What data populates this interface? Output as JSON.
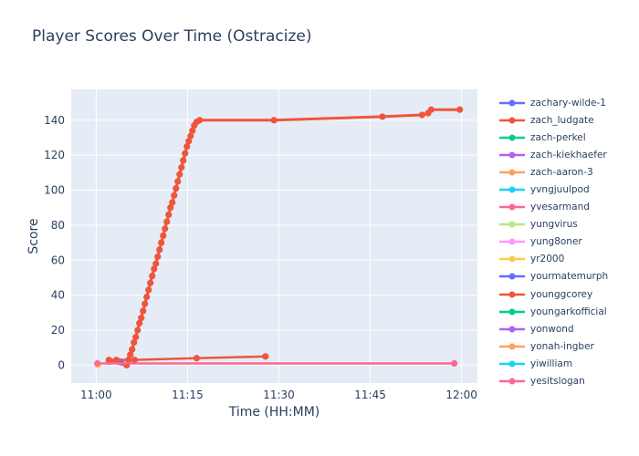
{
  "chart_data": {
    "type": "line",
    "title": "Player Scores Over Time (Ostracize)",
    "xlabel": "Time (HH:MM)",
    "ylabel": "Score",
    "grid": true,
    "legend_position": "right",
    "plot_bg_color": "#e5ecf6",
    "grid_color": "#ffffff",
    "text_color": "#2a3f5f",
    "x_axis": {
      "tick_labels": [
        "11:00",
        "11:15",
        "11:30",
        "11:45",
        "12:00"
      ],
      "tick_minutes": [
        0,
        15,
        30,
        45,
        60
      ],
      "range_minutes": [
        -4.1,
        62.6
      ],
      "start_time": "11:00"
    },
    "y_axis": {
      "ticks": [
        0,
        20,
        40,
        60,
        80,
        100,
        120,
        140
      ],
      "range": [
        -10.2,
        157.6
      ]
    },
    "series": [
      {
        "name": "zachary-wilde-1",
        "color": "#636efa",
        "points": [
          [
            3.8,
            2
          ]
        ]
      },
      {
        "name": "zach_ludgate",
        "color": "#ef553b",
        "points": [
          [
            2.1,
            2
          ],
          [
            5.0,
            0
          ],
          [
            5.3,
            3
          ],
          [
            5.6,
            6
          ],
          [
            5.9,
            9
          ],
          [
            6.2,
            13
          ],
          [
            6.5,
            16
          ],
          [
            6.8,
            20
          ],
          [
            7.1,
            24
          ],
          [
            7.4,
            27
          ],
          [
            7.7,
            31
          ],
          [
            8.0,
            35
          ],
          [
            8.3,
            39
          ],
          [
            8.6,
            43
          ],
          [
            8.9,
            47
          ],
          [
            9.2,
            51
          ],
          [
            9.5,
            55
          ],
          [
            9.8,
            58
          ],
          [
            10.1,
            62
          ],
          [
            10.4,
            66
          ],
          [
            10.7,
            70
          ],
          [
            11.0,
            74
          ],
          [
            11.3,
            78
          ],
          [
            11.6,
            82
          ],
          [
            11.9,
            86
          ],
          [
            12.2,
            90
          ],
          [
            12.5,
            93
          ],
          [
            12.8,
            97
          ],
          [
            13.1,
            101
          ],
          [
            13.4,
            105
          ],
          [
            13.7,
            109
          ],
          [
            14.0,
            113
          ],
          [
            14.3,
            117
          ],
          [
            14.6,
            121
          ],
          [
            14.9,
            125
          ],
          [
            15.2,
            128
          ],
          [
            15.5,
            131
          ],
          [
            15.8,
            134
          ],
          [
            16.1,
            137
          ],
          [
            16.5,
            139
          ],
          [
            17.0,
            140
          ],
          [
            29.2,
            140
          ],
          [
            47.0,
            142
          ],
          [
            53.5,
            143
          ],
          [
            54.5,
            144
          ],
          [
            55.0,
            146
          ],
          [
            59.7,
            146
          ]
        ]
      },
      {
        "name": "zach-perkel",
        "color": "#00cc96",
        "points": []
      },
      {
        "name": "zach-kiekhaefer",
        "color": "#ab63fa",
        "points": []
      },
      {
        "name": "zach-aaron-3",
        "color": "#ffa15a",
        "points": []
      },
      {
        "name": "yvngjuulpod",
        "color": "#19d3f3",
        "points": []
      },
      {
        "name": "yvesarmand",
        "color": "#ff6692",
        "points": []
      },
      {
        "name": "yungvirus",
        "color": "#b6e880",
        "points": []
      },
      {
        "name": "yung8oner",
        "color": "#ff97ff",
        "points": []
      },
      {
        "name": "yr2000",
        "color": "#fecb52",
        "points": [
          [
            0.3,
            0
          ]
        ]
      },
      {
        "name": "yourmatemurph",
        "color": "#636efa",
        "points": [
          [
            4.1,
            2
          ]
        ]
      },
      {
        "name": "younggcorey",
        "color": "#ef553b",
        "points": [
          [
            2.1,
            3
          ],
          [
            3.3,
            3
          ],
          [
            6.3,
            3
          ],
          [
            16.5,
            4
          ],
          [
            27.8,
            5
          ]
        ]
      },
      {
        "name": "youngarkofficial",
        "color": "#00cc96",
        "points": []
      },
      {
        "name": "yonwond",
        "color": "#ab63fa",
        "points": []
      },
      {
        "name": "yonah-ingber",
        "color": "#ffa15a",
        "points": []
      },
      {
        "name": "yiwilliam",
        "color": "#19d3f3",
        "points": []
      },
      {
        "name": "yesitslogan",
        "color": "#ff6692",
        "points": [
          [
            0.2,
            1
          ],
          [
            58.8,
            1
          ]
        ]
      }
    ]
  }
}
